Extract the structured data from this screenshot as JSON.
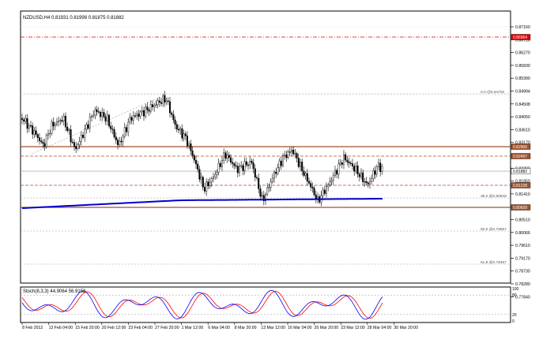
{
  "colors": {
    "background": "#ffffff",
    "grid": "#c8c8c8",
    "candle": "#000000",
    "ma": "#0000cc",
    "resistance": "#a0522d",
    "red_level": "#e00000",
    "stoch_main": "#0000ff",
    "stoch_signal": "#ff0000",
    "fib": "#9a9a9a"
  },
  "header": {
    "symbol_info": "NZDUSD,H4  0.81931 0.81998 0.81875 0.81882"
  },
  "price_axis": {
    "ticks": [
      "0.87160",
      "0.86710",
      "0.86270",
      "0.85830",
      "0.85390",
      "0.84994",
      "0.84508",
      "0.84050",
      "0.83610",
      "0.83170",
      "0.82730",
      "0.82290",
      "0.81850",
      "0.81410",
      "0.80950",
      "0.80510",
      "0.80066",
      "0.79610",
      "0.79170",
      "0.78730",
      "0.78280",
      "0.77840"
    ],
    "tags": [
      {
        "name": "red-level",
        "text": "0.86964"
      },
      {
        "name": "resistance-top",
        "text": "0.82900"
      },
      {
        "name": "resistance-mid",
        "text": "0.82467"
      },
      {
        "name": "current-price",
        "text": "0.81882"
      },
      {
        "name": "support",
        "text": "0.81228"
      },
      {
        "name": "support-bottom",
        "text": "0.80609"
      }
    ]
  },
  "fib_levels": [
    {
      "pct": "0.0",
      "value": "0.84702"
    },
    {
      "pct": "38.2",
      "value": "0.80848"
    },
    {
      "pct": "50.0",
      "value": "0.79657"
    },
    {
      "pct": "61.8",
      "value": "0.78467"
    }
  ],
  "stoch": {
    "label": "Stoch(8,3,3) 44.9064 56.9158",
    "levels": [
      "100",
      "80",
      "20",
      "0"
    ]
  },
  "time_axis": {
    "labels": [
      "8 Feb 2012",
      "13 Feb 04:00",
      "15 Feb 20:00",
      "20 Feb 12:00",
      "23 Feb 04:00",
      "27 Feb 20:00",
      "1 Mar 12:00",
      "6 Mar 04:00",
      "8 Mar 20:00",
      "13 Mar 12:00",
      "16 Mar 04:00",
      "20 Mar 20:00",
      "23 Mar 12:00",
      "28 Mar 04:00",
      "30 Mar 20:00"
    ]
  }
}
